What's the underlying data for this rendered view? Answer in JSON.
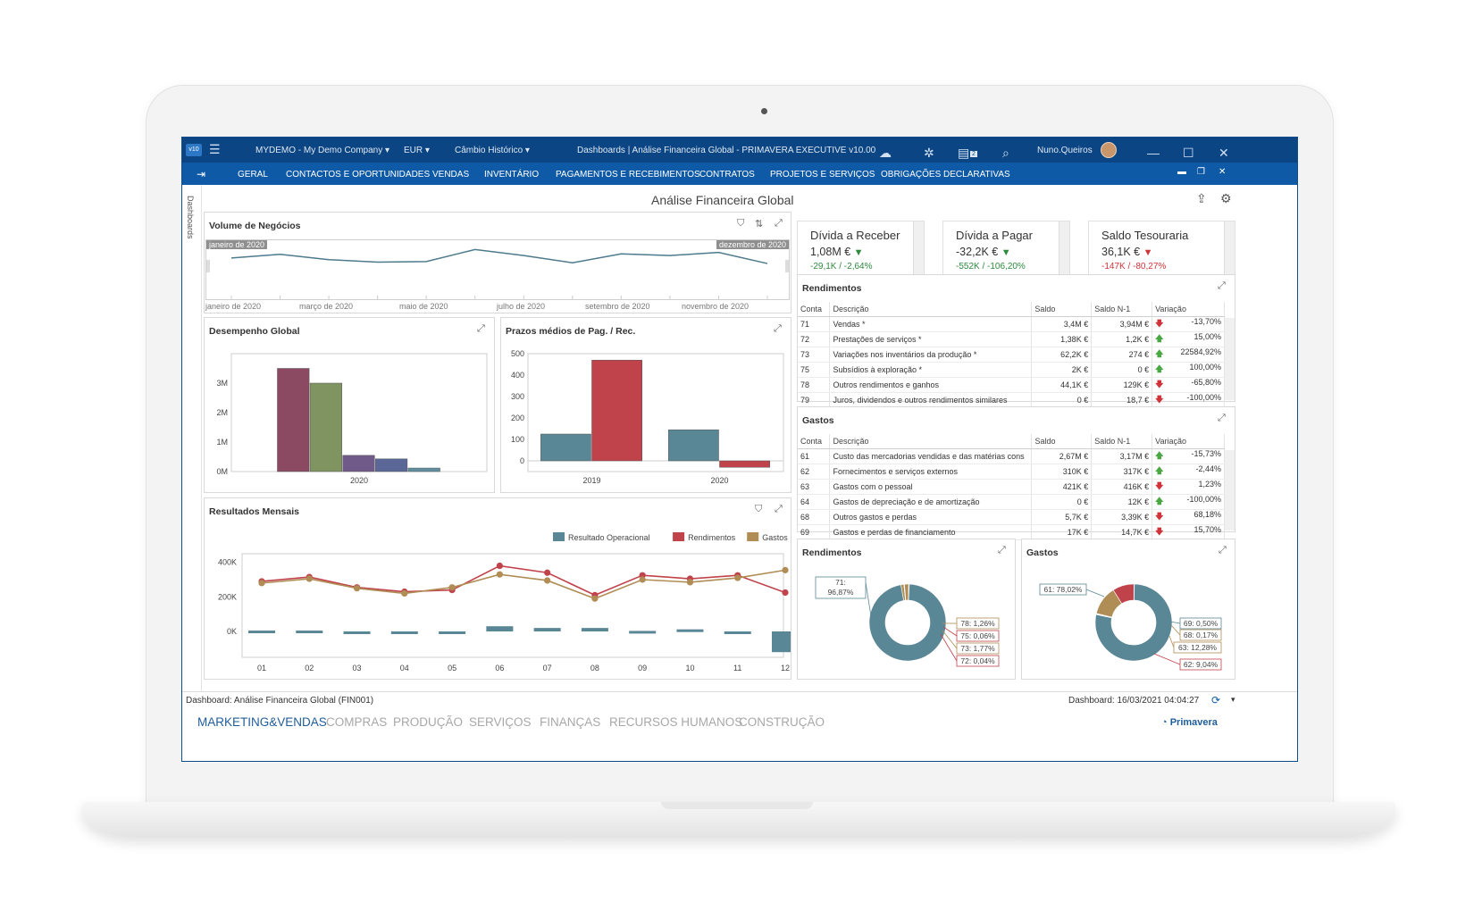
{
  "titlebar": {
    "company": "MYDEMO - My Demo Company",
    "currency": "EUR",
    "exchange": "Câmbio Histórico",
    "window_title": "Dashboards | Análise Financeira Global - PRIMAVERA EXECUTIVE v10.00",
    "user": "Nuno.Queiros",
    "notification_count": "2"
  },
  "menubar": {
    "items": [
      "GERAL",
      "CONTACTOS E OPORTUNIDADES",
      "VENDAS",
      "INVENTÁRIO",
      "PAGAMENTOS E RECEBIMENTOS",
      "CONTRATOS",
      "PROJETOS E SERVIÇOS",
      "OBRIGAÇÕES DECLARATIVAS"
    ]
  },
  "side_tab": "Dashboards",
  "page_title": "Análise Financeira Global",
  "volume": {
    "title": "Volume de Negócios",
    "range_start": "janeiro de 2020",
    "range_end": "dezembro de 2020",
    "axis_labels": [
      "janeiro de 2020",
      "março de 2020",
      "maio de 2020",
      "julho de 2020",
      "setembro de 2020",
      "novembro de 2020"
    ]
  },
  "kpis": [
    {
      "title": "Dívida a Receber",
      "value": "1,08M €",
      "delta": "-29,1K  /  -2,64%",
      "trend": "down",
      "color": "#2e8b3e"
    },
    {
      "title": "Dívida a Pagar",
      "value": "-32,2K €",
      "delta": "-552K  /  -106,20%",
      "trend": "down",
      "color": "#2e8b3e"
    },
    {
      "title": "Saldo Tesouraria",
      "value": "36,1K €",
      "delta": "-147K  /  -80,27%",
      "trend": "down",
      "color": "#d0343a"
    }
  ],
  "rendimentos": {
    "title": "Rendimentos",
    "columns": [
      "Conta",
      "Descrição",
      "Saldo",
      "Saldo N-1",
      "Variação"
    ],
    "rows": [
      [
        "71",
        "Vendas *",
        "3,4M €",
        "3,94M €",
        "down",
        "-13,70%"
      ],
      [
        "72",
        "Prestações de serviços *",
        "1,38K €",
        "1,2K €",
        "up",
        "15,00%"
      ],
      [
        "73",
        "Variações nos inventários da produção *",
        "62,2K €",
        "274 €",
        "up",
        "22584,92%"
      ],
      [
        "75",
        "Subsídios à exploração *",
        "2K €",
        "0 €",
        "up",
        "100,00%"
      ],
      [
        "78",
        "Outros rendimentos e ganhos",
        "44,1K €",
        "129K €",
        "down",
        "-65,80%"
      ],
      [
        "79",
        "Juros, dividendos e outros rendimentos similares",
        "0 €",
        "18,7 €",
        "down",
        "-100,00%"
      ]
    ]
  },
  "gastos": {
    "title": "Gastos",
    "columns": [
      "Conta",
      "Descrição",
      "Saldo",
      "Saldo N-1",
      "Variação"
    ],
    "rows": [
      [
        "61",
        "Custo das mercadorias vendidas e das matérias cons",
        "2,67M €",
        "3,17M €",
        "up",
        "-15,73%"
      ],
      [
        "62",
        "Fornecimentos e serviços externos",
        "310K €",
        "317K €",
        "up",
        "-2,44%"
      ],
      [
        "63",
        "Gastos com o pessoal",
        "421K €",
        "416K €",
        "down",
        "1,23%"
      ],
      [
        "64",
        "Gastos de depreciação e de amortização",
        "0 €",
        "12K €",
        "up",
        "-100,00%"
      ],
      [
        "68",
        "Outros gastos e perdas",
        "5,7K €",
        "3,39K €",
        "down",
        "68,18%"
      ],
      [
        "69",
        "Gastos e perdas de financiamento",
        "17K €",
        "14,7K €",
        "down",
        "15,70%"
      ]
    ]
  },
  "panels": {
    "desempenho": "Desempenho Global",
    "prazos": "Prazos médios de Pag. / Rec.",
    "resultados": "Resultados Mensais",
    "rend_donut": "Rendimentos",
    "gastos_donut": "Gastos"
  },
  "statusbar": {
    "left": "Dashboard: Análise Financeira Global (FIN001)",
    "right": "Dashboard: 16/03/2021 04:04:27"
  },
  "modules": {
    "items": [
      "MARKETING&VENDAS",
      "COMPRAS",
      "PRODUÇÃO",
      "SERVIÇOS",
      "FINANÇAS",
      "RECURSOS HUMANOS",
      "CONSTRUÇÃO"
    ],
    "active": "MARKETING&VENDAS",
    "brand": "Primavera"
  },
  "chart_data": [
    {
      "type": "line",
      "title": "Volume de Negócios",
      "x": [
        "jan",
        "fev",
        "mar",
        "abr",
        "mai",
        "jun",
        "jul",
        "ago",
        "set",
        "out",
        "nov",
        "dez"
      ],
      "values": [
        0.45,
        0.6,
        0.38,
        0.28,
        0.3,
        0.8,
        0.55,
        0.25,
        0.62,
        0.55,
        0.68,
        0.22
      ]
    },
    {
      "type": "bar",
      "title": "Desempenho Global",
      "categories": [
        "2020"
      ],
      "series": [
        {
          "values": [
            3500000
          ],
          "color": "#8b4a62"
        },
        {
          "values": [
            3000000
          ],
          "color": "#7f9460"
        },
        {
          "values": [
            550000
          ],
          "color": "#6f5a8a"
        },
        {
          "values": [
            430000
          ],
          "color": "#5a6797"
        },
        {
          "values": [
            120000
          ],
          "color": "#5f8fa0"
        }
      ],
      "ylim": [
        0,
        4000000
      ],
      "yticks": [
        "0M",
        "1M",
        "2M",
        "3M"
      ]
    },
    {
      "type": "bar",
      "title": "Prazos médios de Pag. / Rec.",
      "categories": [
        "2019",
        "2020"
      ],
      "series": [
        {
          "values": [
            125,
            145
          ],
          "color": "#5a8795"
        },
        {
          "values": [
            470,
            -30
          ],
          "color": "#c0424b"
        }
      ],
      "ylim": [
        -50,
        500
      ],
      "yticks": [
        "0",
        "100",
        "200",
        "300",
        "400",
        "500"
      ]
    },
    {
      "type": "line",
      "title": "Resultados Mensais",
      "categories": [
        "01",
        "02",
        "03",
        "04",
        "05",
        "06",
        "07",
        "08",
        "09",
        "10",
        "11",
        "12"
      ],
      "series": [
        {
          "name": "Resultado Operacional",
          "type": "bar",
          "color": "#5a8795",
          "values": [
            5,
            5,
            0,
            -2,
            -8,
            30,
            20,
            20,
            3,
            12,
            0,
            -120
          ]
        },
        {
          "name": "Rendimentos",
          "type": "line",
          "color": "#c0424b",
          "values": [
            290,
            315,
            255,
            230,
            240,
            380,
            340,
            210,
            325,
            305,
            325,
            225
          ]
        },
        {
          "name": "Gastos",
          "type": "line",
          "color": "#b08d55",
          "values": [
            280,
            305,
            250,
            220,
            255,
            330,
            295,
            190,
            300,
            285,
            310,
            355
          ]
        }
      ],
      "yticks": [
        "0K",
        "200K",
        "400K"
      ],
      "ylim": [
        -150,
        450
      ]
    },
    {
      "type": "pie",
      "title": "Rendimentos",
      "labels": [
        "71: 96,87%",
        "78: 1,26%",
        "75: 0,06%",
        "73: 1,77%",
        "72: 0,04%"
      ],
      "values": [
        96.87,
        1.26,
        0.06,
        1.77,
        0.04
      ],
      "colors": [
        "#5a8795",
        "#b08d55",
        "#c0424b",
        "#b08d55",
        "#c0424b"
      ]
    },
    {
      "type": "pie",
      "title": "Gastos",
      "labels": [
        "61: 78,02%",
        "69: 0,50%",
        "68: 0,17%",
        "63: 12,28%",
        "62: 9,04%"
      ],
      "values": [
        78.02,
        0.5,
        0.17,
        12.28,
        9.04
      ],
      "colors": [
        "#5a8795",
        "#5a8795",
        "#b08d55",
        "#b08d55",
        "#c0424b"
      ]
    }
  ]
}
